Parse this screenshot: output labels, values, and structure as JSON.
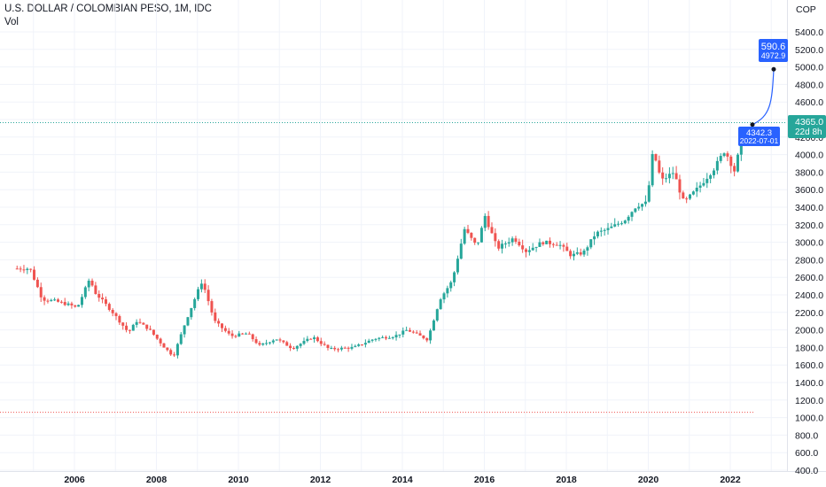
{
  "header": {
    "title": "U.S. DOLLAR / COLOMBIAN PESO, 1M, IDC",
    "subtitle": "Vol"
  },
  "chart_data": {
    "type": "candlestick",
    "currency": "COP",
    "x_tick_labels": [
      "2006",
      "2008",
      "2010",
      "2012",
      "2014",
      "2016",
      "2018",
      "2020",
      "2022"
    ],
    "y_tick_labels": [
      "400.0",
      "600.0",
      "800.0",
      "1000.0",
      "1200.0",
      "1400.0",
      "1600.0",
      "1800.0",
      "2000.0",
      "2200.0",
      "2400.0",
      "2600.0",
      "2800.0",
      "3000.0",
      "3200.0",
      "3400.0",
      "3600.0",
      "3800.0",
      "4000.0",
      "4200.0",
      "4600.0",
      "4800.0",
      "5000.0",
      "5200.0",
      "5400.0"
    ],
    "ylim": [
      400,
      5600
    ],
    "grid": true,
    "colors": {
      "up": "#26a69a",
      "down": "#ef5350",
      "accent": "#2962ff",
      "price_line": "#26a69a",
      "support_line": "#ef5350"
    },
    "current_price": {
      "label": "4365.0",
      "countdown": "22d 8h",
      "value": 4365.0
    },
    "support_line": {
      "value": 1060
    },
    "projection": {
      "start": {
        "label": "4342.3",
        "date": "2022-07-01",
        "value": 4342.3
      },
      "end": {
        "label": "590.6",
        "value_label": "4972.9",
        "value": 4972.9
      }
    },
    "anchors": [
      {
        "t": 2004.6,
        "v": 2700
      },
      {
        "t": 2005.0,
        "v": 2700
      },
      {
        "t": 2005.3,
        "v": 2350
      },
      {
        "t": 2005.6,
        "v": 2330
      },
      {
        "t": 2006.0,
        "v": 2280
      },
      {
        "t": 2006.15,
        "v": 2250
      },
      {
        "t": 2006.45,
        "v": 2580
      },
      {
        "t": 2006.6,
        "v": 2420
      },
      {
        "t": 2007.0,
        "v": 2210
      },
      {
        "t": 2007.4,
        "v": 1970
      },
      {
        "t": 2007.6,
        "v": 2100
      },
      {
        "t": 2007.9,
        "v": 2010
      },
      {
        "t": 2008.3,
        "v": 1790
      },
      {
        "t": 2008.5,
        "v": 1700
      },
      {
        "t": 2008.8,
        "v": 2100
      },
      {
        "t": 2009.1,
        "v": 2450
      },
      {
        "t": 2009.2,
        "v": 2560
      },
      {
        "t": 2009.5,
        "v": 2100
      },
      {
        "t": 2009.9,
        "v": 1930
      },
      {
        "t": 2010.3,
        "v": 1960
      },
      {
        "t": 2010.6,
        "v": 1820
      },
      {
        "t": 2011.0,
        "v": 1900
      },
      {
        "t": 2011.4,
        "v": 1790
      },
      {
        "t": 2011.9,
        "v": 1920
      },
      {
        "t": 2012.3,
        "v": 1780
      },
      {
        "t": 2012.9,
        "v": 1800
      },
      {
        "t": 2013.4,
        "v": 1900
      },
      {
        "t": 2013.9,
        "v": 1930
      },
      {
        "t": 2014.2,
        "v": 2000
      },
      {
        "t": 2014.7,
        "v": 1890
      },
      {
        "t": 2015.0,
        "v": 2350
      },
      {
        "t": 2015.3,
        "v": 2560
      },
      {
        "t": 2015.6,
        "v": 3150
      },
      {
        "t": 2015.9,
        "v": 2950
      },
      {
        "t": 2016.1,
        "v": 3300
      },
      {
        "t": 2016.4,
        "v": 2930
      },
      {
        "t": 2016.8,
        "v": 3050
      },
      {
        "t": 2017.1,
        "v": 2900
      },
      {
        "t": 2017.5,
        "v": 3000
      },
      {
        "t": 2017.9,
        "v": 2980
      },
      {
        "t": 2018.2,
        "v": 2850
      },
      {
        "t": 2018.5,
        "v": 2880
      },
      {
        "t": 2018.8,
        "v": 3100
      },
      {
        "t": 2019.1,
        "v": 3150
      },
      {
        "t": 2019.5,
        "v": 3250
      },
      {
        "t": 2019.8,
        "v": 3420
      },
      {
        "t": 2020.05,
        "v": 3450
      },
      {
        "t": 2020.2,
        "v": 4050
      },
      {
        "t": 2020.4,
        "v": 3700
      },
      {
        "t": 2020.7,
        "v": 3800
      },
      {
        "t": 2020.95,
        "v": 3450
      },
      {
        "t": 2021.3,
        "v": 3620
      },
      {
        "t": 2021.7,
        "v": 3850
      },
      {
        "t": 2021.95,
        "v": 4050
      },
      {
        "t": 2022.2,
        "v": 3800
      },
      {
        "t": 2022.35,
        "v": 4200
      }
    ]
  }
}
